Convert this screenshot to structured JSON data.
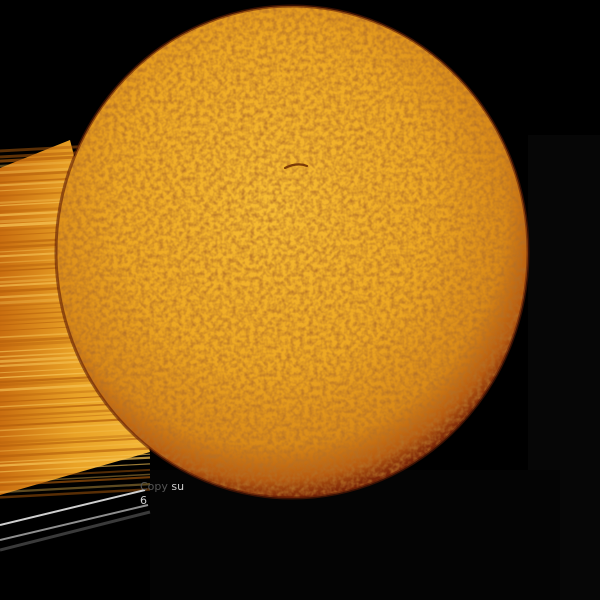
{
  "photo": {
    "subject": "sun-disk",
    "background_color": "#000000",
    "disk_color_center": "#f6b52a",
    "disk_color_mid": "#e29a1d",
    "disk_color_limb": "#8a2f0b",
    "streak_color_light": "#f7c455",
    "streak_color_dark": "#b45f0c"
  },
  "caption": {
    "line1_dim": "Copy",
    "line1": "su",
    "line2": "6"
  }
}
